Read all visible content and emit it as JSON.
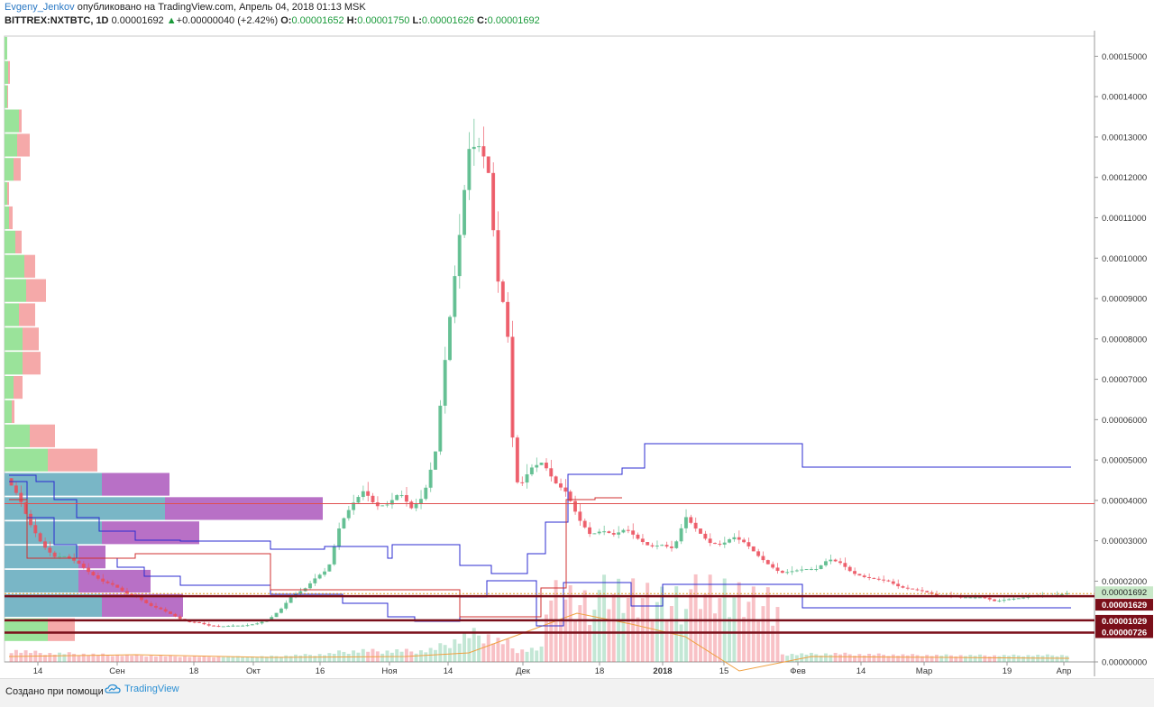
{
  "header": {
    "author": "Evgeny_Jenkov",
    "published": "опубликовано на TradingView.com, Апрель 04, 2018 01:13 MSK",
    "symbol": "BITTREX:NXTBTC, 1D",
    "last": "0.00001692",
    "change_arrow": "▲",
    "change": "+0.00000040 (+2.42%)",
    "o_label": "O:",
    "o": "0.00001652",
    "h_label": "H:",
    "h": "0.00001750",
    "l_label": "L:",
    "l": "0.00001626",
    "c_label": "C:",
    "c": "0.00001692"
  },
  "footer": {
    "made_with": "Создано при помощи",
    "brand": "TradingView",
    "brand_icon": "tradingview-cloud-icon"
  },
  "colors": {
    "up": "#53b987",
    "down": "#eb4d5c",
    "hline_red": "#e05050",
    "hline_dark": "#7a0f1a",
    "blue_step": "#2b2bd0",
    "red_step": "#d03030",
    "ma": "#f0a040",
    "vp_up": "#8fe08f",
    "vp_down": "#f4a0a0",
    "vp_va_up": "#6aaec0",
    "vp_va_down": "#b060c0"
  },
  "chart_data": {
    "type": "candlestick",
    "y_axis": {
      "ticks": [
        "0.00015000",
        "0.00014000",
        "0.00013000",
        "0.00012000",
        "0.00011000",
        "0.00010000",
        "0.00009000",
        "0.00008000",
        "0.00007000",
        "0.00006000",
        "0.00005000",
        "0.00004000",
        "0.00003000",
        "0.00002000",
        "0.00000000"
      ],
      "range": [
        0,
        0.000155
      ]
    },
    "x_axis": {
      "ticks": [
        "14",
        "Сен",
        "18",
        "Окт",
        "16",
        "Ноя",
        "14",
        "Дек",
        "18",
        "2018",
        "15",
        "Фев",
        "14",
        "Мар",
        "19",
        "Апр"
      ]
    },
    "price_labels": [
      {
        "value": "0.00001692",
        "style": "last"
      },
      {
        "value": "0.00001629",
        "style": "level"
      },
      {
        "value": "0.00001029",
        "style": "level"
      },
      {
        "value": "0.00000726",
        "style": "level"
      }
    ],
    "horizontal_levels": [
      3.92e-05,
      1.629e-05,
      1.029e-05,
      7.26e-06
    ],
    "close_path": [
      [
        0,
        4.55e-05
      ],
      [
        5,
        4.1e-05
      ],
      [
        10,
        3.4e-05
      ],
      [
        15,
        2.9e-05
      ],
      [
        20,
        2.6e-05
      ],
      [
        25,
        2.62e-05
      ],
      [
        30,
        2.45e-05
      ],
      [
        35,
        2.2e-05
      ],
      [
        40,
        2e-05
      ],
      [
        45,
        1.9e-05
      ],
      [
        50,
        1.7e-05
      ],
      [
        55,
        1.6e-05
      ],
      [
        60,
        1.4e-05
      ],
      [
        65,
        1.3e-05
      ],
      [
        70,
        1.15e-05
      ],
      [
        75,
        1e-05
      ],
      [
        80,
        9.8e-06
      ],
      [
        85,
        9e-06
      ],
      [
        90,
        8.8e-06
      ],
      [
        95,
        9e-06
      ],
      [
        100,
        9e-06
      ],
      [
        105,
        9.5e-06
      ],
      [
        110,
        1.05e-05
      ],
      [
        115,
        1.3e-05
      ],
      [
        120,
        1.65e-05
      ],
      [
        125,
        1.8e-05
      ],
      [
        130,
        2.1e-05
      ],
      [
        135,
        2.3e-05
      ],
      [
        140,
        3.4e-05
      ],
      [
        145,
        3.9e-05
      ],
      [
        150,
        4.25e-05
      ],
      [
        155,
        3.85e-05
      ],
      [
        160,
        3.9e-05
      ],
      [
        165,
        4.2e-05
      ],
      [
        170,
        3.8e-05
      ],
      [
        175,
        4.1e-05
      ],
      [
        180,
        5.2e-05
      ],
      [
        185,
        8e-05
      ],
      [
        190,
        0.000105
      ],
      [
        194,
        0.000127
      ],
      [
        198,
        0.000128
      ],
      [
        202,
        0.000123
      ],
      [
        206,
        9.5e-05
      ],
      [
        210,
        8.5e-05
      ],
      [
        213,
        4.8e-05
      ],
      [
        215,
        4.3e-05
      ],
      [
        220,
        4.8e-05
      ],
      [
        225,
        4.95e-05
      ],
      [
        230,
        4.45e-05
      ],
      [
        235,
        4.2e-05
      ],
      [
        240,
        3.55e-05
      ],
      [
        245,
        3.15e-05
      ],
      [
        250,
        3.25e-05
      ],
      [
        255,
        3.15e-05
      ],
      [
        260,
        3.3e-05
      ],
      [
        265,
        3.05e-05
      ],
      [
        270,
        2.85e-05
      ],
      [
        275,
        2.9e-05
      ],
      [
        280,
        2.8e-05
      ],
      [
        285,
        3.6e-05
      ],
      [
        290,
        3.25e-05
      ],
      [
        295,
        2.95e-05
      ],
      [
        300,
        2.9e-05
      ],
      [
        305,
        3.1e-05
      ],
      [
        310,
        2.95e-05
      ],
      [
        315,
        2.65e-05
      ],
      [
        320,
        2.4e-05
      ],
      [
        325,
        2.2e-05
      ],
      [
        330,
        2.25e-05
      ],
      [
        335,
        2.3e-05
      ],
      [
        340,
        2.3e-05
      ],
      [
        345,
        2.55e-05
      ],
      [
        350,
        2.45e-05
      ],
      [
        355,
        2.2e-05
      ],
      [
        360,
        2.1e-05
      ],
      [
        365,
        2.05e-05
      ],
      [
        370,
        2e-05
      ],
      [
        375,
        1.85e-05
      ],
      [
        380,
        1.8e-05
      ],
      [
        385,
        1.75e-05
      ],
      [
        390,
        1.65e-05
      ],
      [
        395,
        1.65e-05
      ],
      [
        400,
        1.6e-05
      ],
      [
        405,
        1.6e-05
      ],
      [
        410,
        1.6e-05
      ],
      [
        415,
        1.5e-05
      ],
      [
        420,
        1.55e-05
      ],
      [
        425,
        1.58e-05
      ],
      [
        430,
        1.62e-05
      ],
      [
        435,
        1.65e-05
      ],
      [
        440,
        1.65e-05
      ],
      [
        445,
        1.7e-05
      ]
    ]
  }
}
